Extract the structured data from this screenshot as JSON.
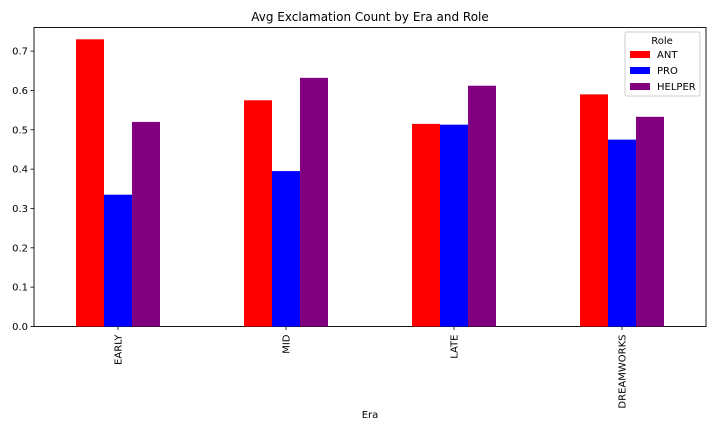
{
  "chart_data": {
    "type": "bar",
    "title": "Avg Exclamation Count by Era and Role",
    "xlabel": "Era",
    "ylabel": "",
    "categories": [
      "EARLY",
      "MID",
      "LATE",
      "DREAMWORKS"
    ],
    "series": [
      {
        "name": "ANT",
        "color": "#ff0000",
        "values": [
          0.73,
          0.575,
          0.515,
          0.59
        ]
      },
      {
        "name": "PRO",
        "color": "#0000ff",
        "values": [
          0.335,
          0.395,
          0.513,
          0.475
        ]
      },
      {
        "name": "HELPER",
        "color": "#800080",
        "values": [
          0.52,
          0.632,
          0.612,
          0.533
        ]
      }
    ],
    "ylim": [
      0,
      0.76
    ],
    "yticks": [
      "0.0",
      "0.1",
      "0.2",
      "0.3",
      "0.4",
      "0.5",
      "0.6",
      "0.7"
    ],
    "legend": {
      "title": "Role",
      "position": "top-right"
    },
    "grid": false
  }
}
